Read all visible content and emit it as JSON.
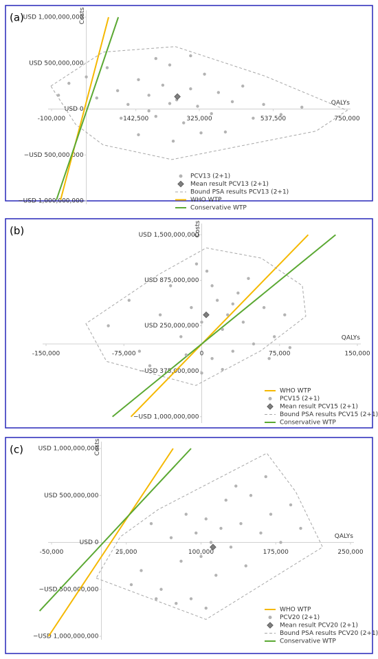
{
  "chart_data": [
    {
      "type": "scatter",
      "panel_label": "(a)",
      "x_label": "QALYs",
      "y_label": "Costs",
      "xlim": [
        -100000,
        750000
      ],
      "xticks": [
        {
          "value": -100000,
          "label": "-100,000"
        },
        {
          "value": 142500,
          "label": "142,500"
        },
        {
          "value": 325000,
          "label": "325,000"
        },
        {
          "value": 537500,
          "label": "537,500"
        },
        {
          "value": 750000,
          "label": "750,000"
        }
      ],
      "ylim": [
        -1000000000,
        1000000000
      ],
      "yticks": [
        {
          "value": 1000000000,
          "label": "USD 1,000,000,000"
        },
        {
          "value": 500000000,
          "label": "USD 500,000,000"
        },
        {
          "value": 0,
          "label": "USD 0"
        },
        {
          "value": -500000000,
          "label": "−USD 500,000,000"
        },
        {
          "value": -1000000000,
          "label": "−USD 1,000,000,000"
        }
      ],
      "grid": false,
      "series": [
        {
          "name": "PCV13 (2+1)",
          "color": "#b3b3b3",
          "marker": "circle",
          "x": [
            -80000,
            -50000,
            0,
            30000,
            60000,
            90000,
            120000,
            150000,
            180000,
            200000,
            220000,
            240000,
            260000,
            280000,
            300000,
            320000,
            340000,
            360000,
            380000,
            400000,
            420000,
            450000,
            480000,
            510000,
            560000,
            620000,
            150000,
            250000,
            100000,
            200000,
            300000,
            180000,
            240000,
            330000
          ],
          "values": [
            150000000.0,
            280000000.0,
            350000000.0,
            120000000.0,
            450000000.0,
            200000000.0,
            50000000.0,
            320000000.0,
            150000000.0,
            -80000000.0,
            260000000.0,
            480000000.0,
            100000000.0,
            -150000000.0,
            220000000.0,
            30000000.0,
            380000000.0,
            -50000000.0,
            180000000.0,
            -250000000.0,
            80000000.0,
            250000000.0,
            -100000000.0,
            50000000.0,
            -60000000.0,
            20000000.0,
            -280000000.0,
            -350000000.0,
            -100000000.0,
            550000000.0,
            580000000.0,
            -20000000.0,
            60000000.0,
            -260000000.0
          ]
        },
        {
          "name": "Mean result PCV13 (2+1)",
          "color": "#7f7f7f",
          "marker": "diamond",
          "x": [
            262000
          ],
          "values": [
            135000000.0
          ]
        },
        {
          "name": "Bound PSA results PCV13 (2+1)",
          "color": "#a6a6a6",
          "line_style": "dashed",
          "closed": true,
          "x": [
            -102000,
            48000,
            256000,
            513000,
            750000,
            661000,
            246000,
            48000,
            -31000
          ],
          "values": [
            250000000.0,
            620000000.0,
            680000000.0,
            360000000.0,
            -15000000.0,
            -240000000.0,
            -550000000.0,
            -390000000.0,
            -165000000.0
          ]
        },
        {
          "name": "WHO WTP",
          "color": "#f5b800",
          "line_style": "solid",
          "x": [
            -74000,
            64000
          ],
          "values": [
            -990000000.0,
            1000000000.0
          ]
        },
        {
          "name": "Conservative WTP",
          "color": "#5aa832",
          "line_style": "solid",
          "x": [
            -86000,
            92000
          ],
          "values": [
            -990000000.0,
            1000000000.0
          ]
        }
      ]
    },
    {
      "type": "scatter",
      "panel_label": "(b)",
      "x_label": "QALYs",
      "y_label": "Costs",
      "xlim": [
        -150000,
        150000
      ],
      "xticks": [
        {
          "value": -150000,
          "label": "-150,000"
        },
        {
          "value": -75000,
          "label": "-75,000"
        },
        0,
        {
          "value": 75000,
          "label": "75,000"
        },
        {
          "value": 150000,
          "label": "150,000"
        }
      ],
      "ylim": [
        -1040000000,
        1560000000
      ],
      "yticks": [
        {
          "value": 1500000000,
          "label": "USD 1,500,000,000"
        },
        {
          "value": 875000000,
          "label": "USD 875,000,000"
        },
        {
          "value": 250000000,
          "label": "USD 250,000,000"
        },
        {
          "value": -375000000,
          "label": "−USD 375,000,000"
        },
        {
          "value": -1000000000,
          "label": "−USD 1,000,000,000"
        }
      ],
      "grid": false,
      "series": [
        {
          "name": "WHO WTP",
          "color": "#f5b800",
          "line_style": "solid",
          "x": [
            -68200,
            102600
          ],
          "values": [
            -1000000000.0,
            1500000000.0
          ]
        },
        {
          "name": "PCV15 (2+1)",
          "color": "#b3b3b3",
          "marker": "circle",
          "x": [
            -90000,
            -70000,
            -60000,
            -40000,
            -30000,
            -20000,
            -10000,
            0,
            5000,
            10000,
            15000,
            20000,
            25000,
            30000,
            35000,
            40000,
            50000,
            60000,
            70000,
            80000,
            -50000,
            0,
            20000,
            45000,
            -15000,
            10000,
            -5000,
            65000,
            85000,
            30000
          ],
          "values": [
            250000000.0,
            600000000.0,
            -100000000.0,
            400000000.0,
            800000000.0,
            100000000.0,
            500000000.0,
            300000000.0,
            1000000000.0,
            -200000000.0,
            600000000.0,
            200000000.0,
            400000000.0,
            -100000000.0,
            700000000.0,
            300000000.0,
            0,
            500000000.0,
            100000000.0,
            400000000.0,
            -300000000.0,
            -400000000.0,
            -350000000.0,
            900000000.0,
            -150000000.0,
            800000000.0,
            1100000000.0,
            -200000000.0,
            -50000000.0,
            550000000.0
          ]
        },
        {
          "name": "Mean result PCV15 (2+1)",
          "color": "#7f7f7f",
          "marker": "diamond",
          "x": [
            4300
          ],
          "values": [
            400000000.0
          ]
        },
        {
          "name": "Bound PSA results PCV15 (2+1)",
          "color": "#a6a6a6",
          "line_style": "dashed",
          "closed": true,
          "x": [
            -111600,
            -91700,
            -5600,
            57300,
            100300,
            97000,
            57300,
            4300,
            -42000
          ],
          "values": [
            280000000.0,
            -240000000.0,
            -570000000.0,
            -90000000.0,
            380000000.0,
            800000000.0,
            1180000000.0,
            1320000000.0,
            950000000.0
          ]
        },
        {
          "name": "Conservative WTP",
          "color": "#5aa832",
          "line_style": "solid",
          "x": [
            -86000,
            129000
          ],
          "values": [
            -1000000000.0,
            1500000000.0
          ]
        }
      ]
    },
    {
      "type": "scatter",
      "panel_label": "(c)",
      "x_label": "QALYs",
      "y_label": "Costs",
      "xlim": [
        -50000,
        250000
      ],
      "xticks": [
        {
          "value": -50000,
          "label": "-50,000"
        },
        {
          "value": 25000,
          "label": "25,000"
        },
        {
          "value": 100000,
          "label": "100,000"
        },
        {
          "value": 175000,
          "label": "175,000"
        },
        {
          "value": 250000,
          "label": "250,000"
        }
      ],
      "ylim": [
        -1000000000,
        1000000000
      ],
      "yticks": [
        {
          "value": 1000000000,
          "label": "USD 1,000,000,000"
        },
        {
          "value": 500000000,
          "label": "USD 500,000,000"
        },
        {
          "value": 0,
          "label": "USD 0"
        },
        {
          "value": -500000000,
          "label": "−USD 500,000,000"
        },
        {
          "value": -1000000000,
          "label": "−USD 1,000,000,000"
        }
      ],
      "grid": false,
      "series": [
        {
          "name": "WHO WTP",
          "color": "#f5b800",
          "line_style": "solid",
          "x": [
            -53000,
            72000
          ],
          "values": [
            -1000000000.0,
            1000000000.0
          ]
        },
        {
          "name": "PCV20 (2+1)",
          "color": "#b3b3b3",
          "marker": "circle",
          "x": [
            20000,
            40000,
            50000,
            60000,
            70000,
            80000,
            85000,
            90000,
            95000,
            100000,
            105000,
            110000,
            115000,
            120000,
            125000,
            130000,
            140000,
            145000,
            150000,
            160000,
            170000,
            180000,
            190000,
            200000,
            165000,
            135000,
            75000,
            55000,
            105000,
            30000
          ],
          "values": [
            -100000000.0,
            -300000000.0,
            200000000.0,
            -500000000.0,
            50000000.0,
            -200000000.0,
            300000000.0,
            -600000000.0,
            100000000.0,
            -150000000.0,
            250000000.0,
            0,
            -350000000.0,
            150000000.0,
            450000000.0,
            -50000000.0,
            200000000.0,
            -250000000.0,
            500000000.0,
            100000000.0,
            300000000.0,
            0,
            400000000.0,
            150000000.0,
            700000000.0,
            600000000.0,
            -650000000.0,
            -600000000.0,
            -700000000.0,
            -450000000.0
          ]
        },
        {
          "name": "Mean result PCV20 (2+1)",
          "color": "#7f7f7f",
          "marker": "diamond",
          "x": [
            112000
          ],
          "values": [
            -50000000.0
          ]
        },
        {
          "name": "Bound PSA results PCV20 (2+1)",
          "color": "#a6a6a6",
          "line_style": "dashed",
          "closed": true,
          "x": [
            -5200,
            105000,
            222000,
            195000,
            166000,
            57000,
            19000
          ],
          "values": [
            -380000000.0,
            -820000000.0,
            -50000000.0,
            540000000.0,
            950000000.0,
            350000000.0,
            60000000.0
          ]
        },
        {
          "name": "Conservative WTP",
          "color": "#5aa832",
          "line_style": "solid",
          "x": [
            -62000,
            90000
          ],
          "values": [
            -730000000.0,
            1000000000.0
          ]
        }
      ]
    }
  ]
}
